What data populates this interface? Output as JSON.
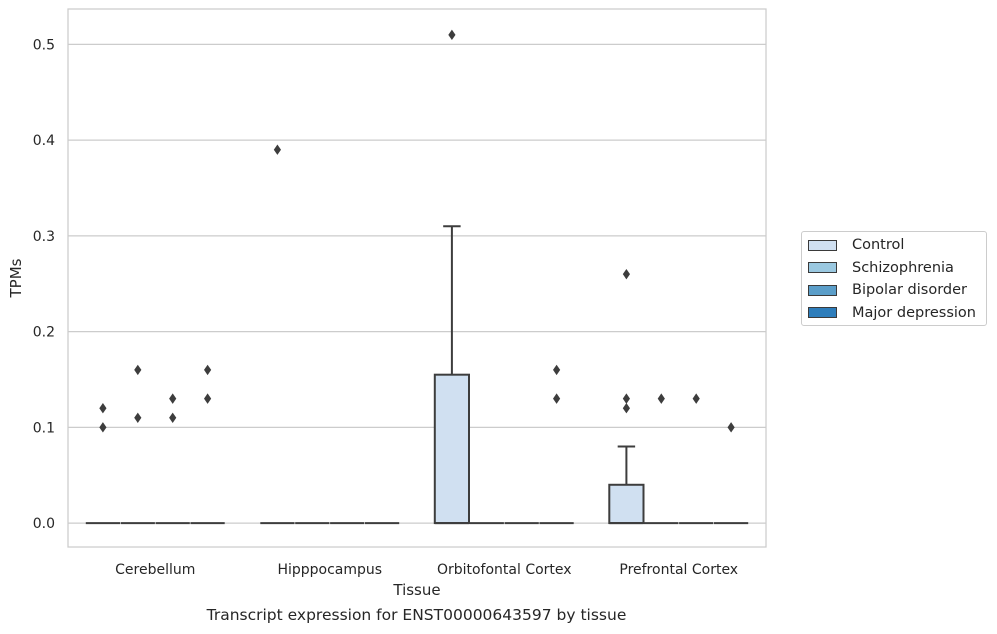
{
  "chart_data": {
    "type": "box",
    "caption": "Transcript expression for ENST00000643597 by tissue",
    "xlabel": "Tissue",
    "ylabel": "TPMs",
    "ylim": [
      -0.025,
      0.537
    ],
    "yticks": [
      "0.0",
      "0.1",
      "0.2",
      "0.3",
      "0.4",
      "0.5"
    ],
    "ytick_values": [
      0,
      0.1,
      0.2,
      0.3,
      0.4,
      0.5
    ],
    "grid": "horizontal",
    "legend_position": "right",
    "categories": [
      "Cerebellum",
      "Hipppocampus",
      "Orbitofontal Cortex",
      "Prefrontal Cortex"
    ],
    "series": [
      {
        "name": "Control",
        "color": "#d0e0f1",
        "boxes": [
          {
            "q1": 0,
            "median": 0,
            "q3": 0,
            "whisker_low": 0,
            "whisker_high": 0,
            "outliers": [
              0.1,
              0.12
            ]
          },
          {
            "q1": 0,
            "median": 0,
            "q3": 0,
            "whisker_low": 0,
            "whisker_high": 0,
            "outliers": [
              0.39
            ]
          },
          {
            "q1": 0,
            "median": 0,
            "q3": 0.155,
            "whisker_low": 0,
            "whisker_high": 0.31,
            "outliers": [
              0.51
            ]
          },
          {
            "q1": 0,
            "median": 0,
            "q3": 0.04,
            "whisker_low": 0,
            "whisker_high": 0.08,
            "outliers": [
              0.12,
              0.13,
              0.26
            ]
          }
        ]
      },
      {
        "name": "Schizophrenia",
        "color": "#9ac8e0",
        "boxes": [
          {
            "q1": 0,
            "median": 0,
            "q3": 0,
            "whisker_low": 0,
            "whisker_high": 0,
            "outliers": [
              0.11,
              0.16
            ]
          },
          {
            "q1": 0,
            "median": 0,
            "q3": 0,
            "whisker_low": 0,
            "whisker_high": 0,
            "outliers": []
          },
          {
            "q1": 0,
            "median": 0,
            "q3": 0,
            "whisker_low": 0,
            "whisker_high": 0,
            "outliers": []
          },
          {
            "q1": 0,
            "median": 0,
            "q3": 0,
            "whisker_low": 0,
            "whisker_high": 0,
            "outliers": [
              0.13
            ]
          }
        ]
      },
      {
        "name": "Bipolar disorder",
        "color": "#5b9ec9",
        "boxes": [
          {
            "q1": 0,
            "median": 0,
            "q3": 0,
            "whisker_low": 0,
            "whisker_high": 0,
            "outliers": [
              0.11,
              0.13
            ]
          },
          {
            "q1": 0,
            "median": 0,
            "q3": 0,
            "whisker_low": 0,
            "whisker_high": 0,
            "outliers": []
          },
          {
            "q1": 0,
            "median": 0,
            "q3": 0,
            "whisker_low": 0,
            "whisker_high": 0,
            "outliers": []
          },
          {
            "q1": 0,
            "median": 0,
            "q3": 0,
            "whisker_low": 0,
            "whisker_high": 0,
            "outliers": [
              0.13
            ]
          }
        ]
      },
      {
        "name": "Major depression",
        "color": "#2d7dbb",
        "boxes": [
          {
            "q1": 0,
            "median": 0,
            "q3": 0,
            "whisker_low": 0,
            "whisker_high": 0,
            "outliers": [
              0.13,
              0.16
            ]
          },
          {
            "q1": 0,
            "median": 0,
            "q3": 0,
            "whisker_low": 0,
            "whisker_high": 0,
            "outliers": []
          },
          {
            "q1": 0,
            "median": 0,
            "q3": 0,
            "whisker_low": 0,
            "whisker_high": 0,
            "outliers": [
              0.13,
              0.16
            ]
          },
          {
            "q1": 0,
            "median": 0,
            "q3": 0,
            "whisker_low": 0,
            "whisker_high": 0,
            "outliers": [
              0.1
            ]
          }
        ]
      }
    ]
  }
}
